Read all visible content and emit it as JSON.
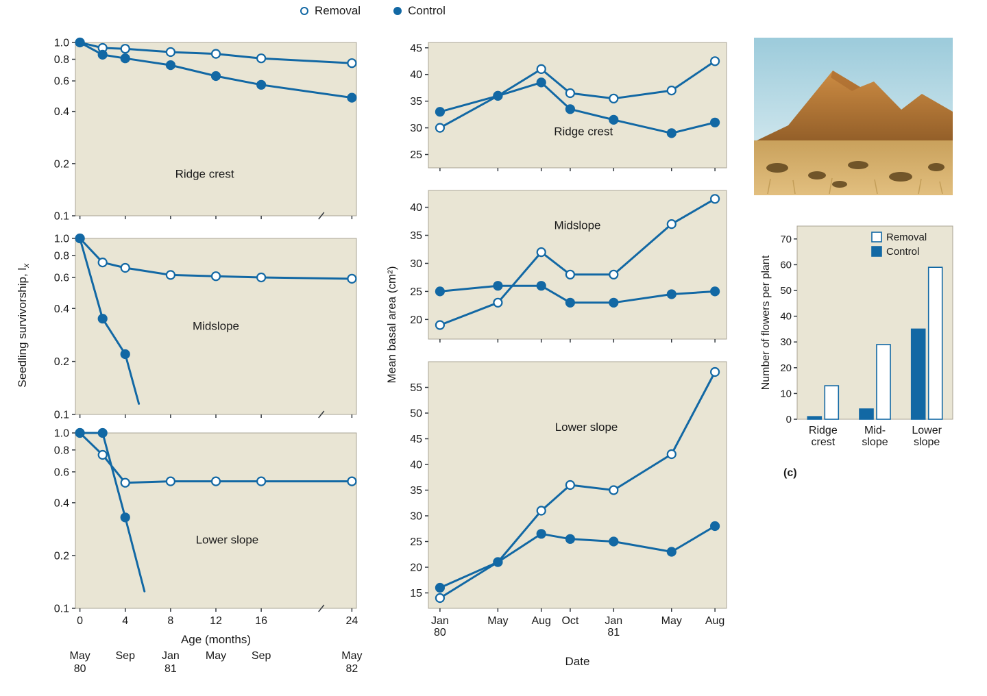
{
  "colors": {
    "line": "#1268a4",
    "panel_bg": "#e9e5d4",
    "panel_border": "#a9a494",
    "open_fill": "#ffffff",
    "text": "#1a1a1a"
  },
  "legend": {
    "removal": "Removal",
    "control": "Control"
  },
  "left_column": {
    "ylabel_text": "Seedling survivorship, l",
    "ylabel_sub": "x",
    "xlabel": "Age (months)",
    "date_months": [
      0,
      4,
      8,
      12,
      16,
      24
    ],
    "date_labels": [
      "May\n80",
      "Sep",
      "Jan\n81",
      "May",
      "Sep",
      "May\n82"
    ]
  },
  "middle_column": {
    "ylabel": "Mean basal area (cm²)",
    "xlabel": "Date"
  },
  "right_column": {
    "ylabel": "Number of flowers per plant",
    "caption": "(c)"
  },
  "chart_data": [
    {
      "id": "surv-ridge",
      "type": "line",
      "yscale": "log",
      "title": "Ridge crest",
      "x": [
        0,
        2,
        4,
        8,
        12,
        16,
        24
      ],
      "xlim": [
        -0.4,
        24.4
      ],
      "ylim": [
        0.1,
        1.0
      ],
      "yticks": [
        1.0,
        0.8,
        0.6,
        0.4,
        0.2,
        0.1
      ],
      "ytick_fmt": "1dp",
      "xticks": [
        0,
        4,
        8,
        12,
        16,
        24
      ],
      "axis_break": 21.3,
      "series": [
        {
          "name": "Removal",
          "marker": "open",
          "values": [
            1.0,
            0.93,
            0.92,
            0.88,
            0.86,
            0.81,
            0.76
          ]
        },
        {
          "name": "Control",
          "marker": "filled",
          "values": [
            1.0,
            0.85,
            0.81,
            0.74,
            0.64,
            0.57,
            0.48
          ]
        }
      ]
    },
    {
      "id": "surv-mid",
      "type": "line",
      "yscale": "log",
      "title": "Midslope",
      "xlim": [
        -0.4,
        24.4
      ],
      "ylim": [
        0.1,
        1.0
      ],
      "yticks": [
        1.0,
        0.8,
        0.6,
        0.4,
        0.2,
        0.1
      ],
      "ytick_fmt": "1dp",
      "xticks": [
        0,
        4,
        8,
        12,
        16,
        24
      ],
      "axis_break": 21.3,
      "series": [
        {
          "name": "Removal",
          "marker": "open",
          "x": [
            0,
            2,
            4,
            8,
            12,
            16,
            24
          ],
          "values": [
            1.0,
            0.73,
            0.68,
            0.62,
            0.61,
            0.6,
            0.59
          ]
        },
        {
          "name": "Control",
          "marker": "filled",
          "x": [
            0,
            2,
            4
          ],
          "values": [
            1.0,
            0.35,
            0.22
          ],
          "tail": [
            5.2,
            0.115
          ]
        }
      ]
    },
    {
      "id": "surv-lower",
      "type": "line",
      "yscale": "log",
      "title": "Lower slope",
      "xlim": [
        -0.4,
        24.4
      ],
      "ylim": [
        0.1,
        1.0
      ],
      "yticks": [
        1.0,
        0.8,
        0.6,
        0.4,
        0.2,
        0.1
      ],
      "ytick_fmt": "1dp",
      "xticks": [
        0,
        4,
        8,
        12,
        16,
        24
      ],
      "axis_break": 21.3,
      "xtick_labels": [
        "0",
        "4",
        "8",
        "12",
        "16",
        "24"
      ],
      "series": [
        {
          "name": "Removal",
          "marker": "open",
          "x": [
            0,
            2,
            4,
            8,
            12,
            16,
            24
          ],
          "values": [
            1.0,
            0.75,
            0.52,
            0.53,
            0.53,
            0.53,
            0.53
          ]
        },
        {
          "name": "Control",
          "marker": "filled",
          "x": [
            0,
            2,
            4
          ],
          "values": [
            1.0,
            1.0,
            0.33
          ],
          "tail": [
            5.7,
            0.125
          ]
        }
      ]
    },
    {
      "id": "basal-ridge",
      "type": "line",
      "title": "Ridge crest",
      "x": [
        0,
        4,
        7,
        9,
        12,
        16,
        19
      ],
      "xlim": [
        -0.8,
        19.8
      ],
      "ylim": [
        22.5,
        46
      ],
      "yticks": [
        25,
        30,
        35,
        40,
        45
      ],
      "xticks": [
        0,
        4,
        7,
        9,
        12,
        16,
        19
      ],
      "series": [
        {
          "name": "Removal",
          "marker": "open",
          "values": [
            30,
            36,
            41,
            36.5,
            35.5,
            37,
            42.5
          ]
        },
        {
          "name": "Control",
          "marker": "filled",
          "values": [
            33,
            36,
            38.5,
            33.5,
            31.5,
            29,
            31
          ]
        }
      ]
    },
    {
      "id": "basal-mid",
      "type": "line",
      "title": "Midslope",
      "x": [
        0,
        4,
        7,
        9,
        12,
        16,
        19
      ],
      "xlim": [
        -0.8,
        19.8
      ],
      "ylim": [
        16.5,
        43
      ],
      "yticks": [
        20,
        25,
        30,
        35,
        40
      ],
      "xticks": [
        0,
        4,
        7,
        9,
        12,
        16,
        19
      ],
      "series": [
        {
          "name": "Removal",
          "marker": "open",
          "values": [
            19,
            23,
            32,
            28,
            28,
            37,
            41.5
          ]
        },
        {
          "name": "Control",
          "marker": "filled",
          "values": [
            25,
            26,
            26,
            23,
            23,
            24.5,
            25
          ]
        }
      ]
    },
    {
      "id": "basal-lower",
      "type": "line",
      "title": "Lower slope",
      "x": [
        0,
        4,
        7,
        9,
        12,
        16,
        19
      ],
      "xlim": [
        -0.8,
        19.8
      ],
      "ylim": [
        12,
        60
      ],
      "yticks": [
        15,
        20,
        25,
        30,
        35,
        40,
        45,
        50,
        55
      ],
      "xticks": [
        0,
        4,
        7,
        9,
        12,
        16,
        19
      ],
      "xtick_labels": [
        "Jan\n80",
        "May",
        "Aug",
        "Oct",
        "Jan\n81",
        "May",
        "Aug"
      ],
      "series": [
        {
          "name": "Removal",
          "marker": "open",
          "values": [
            14,
            21,
            31,
            36,
            35,
            42,
            58
          ]
        },
        {
          "name": "Control",
          "marker": "filled",
          "values": [
            16,
            21,
            26.5,
            25.5,
            25,
            23,
            28
          ]
        }
      ]
    },
    {
      "id": "flowers",
      "type": "bar",
      "categories": [
        "Ridge\ncrest",
        "Mid-\nslope",
        "Lower\nslope"
      ],
      "ylim": [
        0,
        75
      ],
      "yticks": [
        0,
        10,
        20,
        30,
        40,
        50,
        60,
        70
      ],
      "legend_order": [
        "Removal",
        "Control"
      ],
      "series": [
        {
          "name": "Control",
          "style": "filled",
          "values": [
            1,
            4,
            35
          ]
        },
        {
          "name": "Removal",
          "style": "open",
          "values": [
            13,
            29,
            59
          ]
        }
      ]
    }
  ]
}
